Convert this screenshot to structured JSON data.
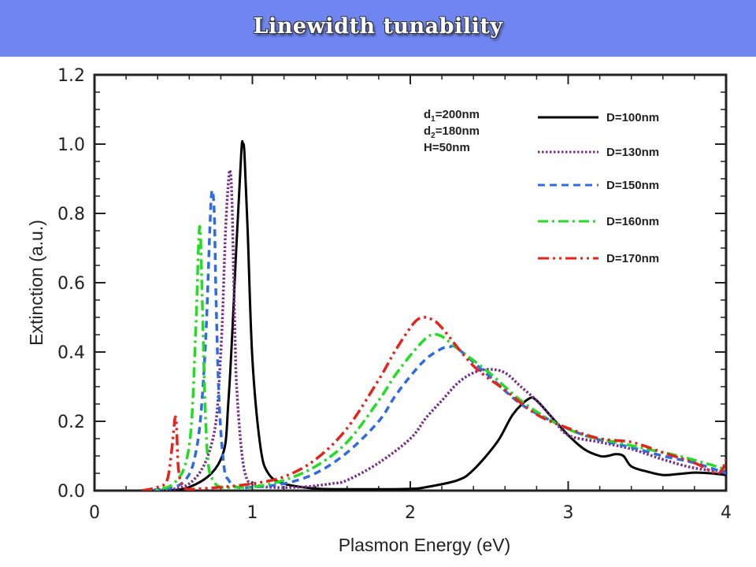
{
  "header": {
    "title": "Linewidth tunability"
  },
  "chart_data": {
    "type": "line",
    "xlabel": "Plasmon Energy (eV)",
    "ylabel": "Extinction (a.u.)",
    "xlim": [
      0,
      4
    ],
    "ylim": [
      0,
      1.2
    ],
    "xticks": [
      "0",
      "1",
      "2",
      "3",
      "4"
    ],
    "yticks": [
      "0.0",
      "0.2",
      "0.4",
      "0.6",
      "0.8",
      "1.0",
      "1.2"
    ],
    "grid": false,
    "legend_position": "top-right",
    "annotations": [
      {
        "main": "d",
        "sub": "1",
        "rest": "=200nm"
      },
      {
        "main": "d",
        "sub": "2",
        "rest": "=180nm"
      },
      {
        "main": "H=50nm",
        "sub": "",
        "rest": ""
      }
    ],
    "series": [
      {
        "name": "D=100nm",
        "color": "#000000",
        "dash": "solid",
        "x": [
          0.3,
          0.6,
          0.8,
          0.85,
          0.9,
          0.93,
          0.94,
          0.95,
          0.97,
          1.0,
          1.05,
          1.1,
          1.2,
          1.4,
          1.6,
          1.8,
          2.0,
          2.1,
          2.3,
          2.4,
          2.55,
          2.65,
          2.75,
          2.8,
          2.9,
          3.0,
          3.1,
          3.2,
          3.25,
          3.3,
          3.35,
          3.4,
          3.5,
          3.6,
          3.7,
          3.8,
          3.9,
          4.0
        ],
        "y": [
          0.0,
          0.01,
          0.09,
          0.27,
          0.72,
          0.98,
          1.0,
          0.97,
          0.75,
          0.38,
          0.13,
          0.05,
          0.02,
          0.006,
          0.004,
          0.004,
          0.005,
          0.01,
          0.03,
          0.06,
          0.14,
          0.22,
          0.265,
          0.26,
          0.21,
          0.16,
          0.12,
          0.1,
          0.1,
          0.105,
          0.1,
          0.07,
          0.055,
          0.045,
          0.048,
          0.052,
          0.05,
          0.045
        ]
      },
      {
        "name": "D=130nm",
        "color": "#7a2a8e",
        "dash": "dotted",
        "x": [
          0.3,
          0.6,
          0.75,
          0.8,
          0.83,
          0.85,
          0.86,
          0.87,
          0.88,
          0.89,
          0.9,
          0.93,
          0.96,
          1.0,
          1.1,
          1.3,
          1.5,
          1.6,
          1.8,
          2.0,
          2.1,
          2.2,
          2.3,
          2.4,
          2.5,
          2.6,
          2.7,
          2.8,
          2.9,
          3.0,
          3.2,
          3.4,
          3.6,
          3.8,
          4.0
        ],
        "y": [
          0.0,
          0.02,
          0.15,
          0.4,
          0.75,
          0.9,
          0.92,
          0.85,
          0.65,
          0.45,
          0.3,
          0.12,
          0.04,
          0.02,
          0.01,
          0.01,
          0.02,
          0.03,
          0.08,
          0.15,
          0.21,
          0.26,
          0.31,
          0.34,
          0.35,
          0.34,
          0.3,
          0.26,
          0.21,
          0.16,
          0.14,
          0.12,
          0.09,
          0.065,
          0.055
        ]
      },
      {
        "name": "D=150nm",
        "color": "#2f6be4",
        "dash": "dashed",
        "x": [
          0.3,
          0.55,
          0.65,
          0.7,
          0.73,
          0.74,
          0.75,
          0.76,
          0.77,
          0.79,
          0.82,
          0.85,
          0.9,
          1.0,
          1.2,
          1.4,
          1.6,
          1.8,
          1.9,
          2.0,
          2.1,
          2.2,
          2.25,
          2.3,
          2.5,
          2.7,
          2.9,
          3.1,
          3.3,
          3.4,
          3.6,
          3.8,
          4.0
        ],
        "y": [
          0.0,
          0.02,
          0.13,
          0.4,
          0.75,
          0.85,
          0.86,
          0.78,
          0.55,
          0.25,
          0.07,
          0.03,
          0.01,
          0.01,
          0.02,
          0.05,
          0.11,
          0.2,
          0.27,
          0.33,
          0.38,
          0.41,
          0.415,
          0.41,
          0.33,
          0.25,
          0.2,
          0.16,
          0.135,
          0.125,
          0.1,
          0.08,
          0.05
        ]
      },
      {
        "name": "D=160nm",
        "color": "#22dd22",
        "dash": "dashdot",
        "x": [
          0.3,
          0.5,
          0.6,
          0.64,
          0.66,
          0.67,
          0.68,
          0.7,
          0.72,
          0.75,
          0.8,
          0.9,
          1.0,
          1.2,
          1.4,
          1.6,
          1.8,
          1.9,
          2.0,
          2.1,
          2.15,
          2.2,
          2.3,
          2.5,
          2.7,
          2.9,
          3.1,
          3.3,
          3.5,
          3.7,
          3.9,
          4.0
        ],
        "y": [
          0.0,
          0.02,
          0.13,
          0.45,
          0.72,
          0.75,
          0.6,
          0.25,
          0.08,
          0.03,
          0.01,
          0.01,
          0.01,
          0.03,
          0.07,
          0.14,
          0.26,
          0.33,
          0.39,
          0.44,
          0.45,
          0.445,
          0.41,
          0.34,
          0.26,
          0.2,
          0.16,
          0.14,
          0.12,
          0.1,
          0.075,
          0.06
        ]
      },
      {
        "name": "D=170nm",
        "color": "#e6231a",
        "dash": "dashdotdot",
        "x": [
          0.3,
          0.4,
          0.46,
          0.49,
          0.51,
          0.52,
          0.53,
          0.55,
          0.58,
          0.65,
          0.8,
          1.0,
          1.2,
          1.4,
          1.6,
          1.8,
          1.9,
          2.0,
          2.05,
          2.1,
          2.15,
          2.2,
          2.4,
          2.6,
          2.8,
          3.0,
          3.2,
          3.4,
          3.6,
          3.8,
          3.95,
          4.0
        ],
        "y": [
          0.0,
          0.01,
          0.03,
          0.12,
          0.21,
          0.18,
          0.07,
          0.02,
          0.005,
          0.005,
          0.01,
          0.02,
          0.04,
          0.09,
          0.18,
          0.32,
          0.4,
          0.47,
          0.495,
          0.5,
          0.49,
          0.47,
          0.36,
          0.29,
          0.22,
          0.18,
          0.15,
          0.14,
          0.11,
          0.08,
          0.05,
          0.09
        ]
      }
    ]
  }
}
